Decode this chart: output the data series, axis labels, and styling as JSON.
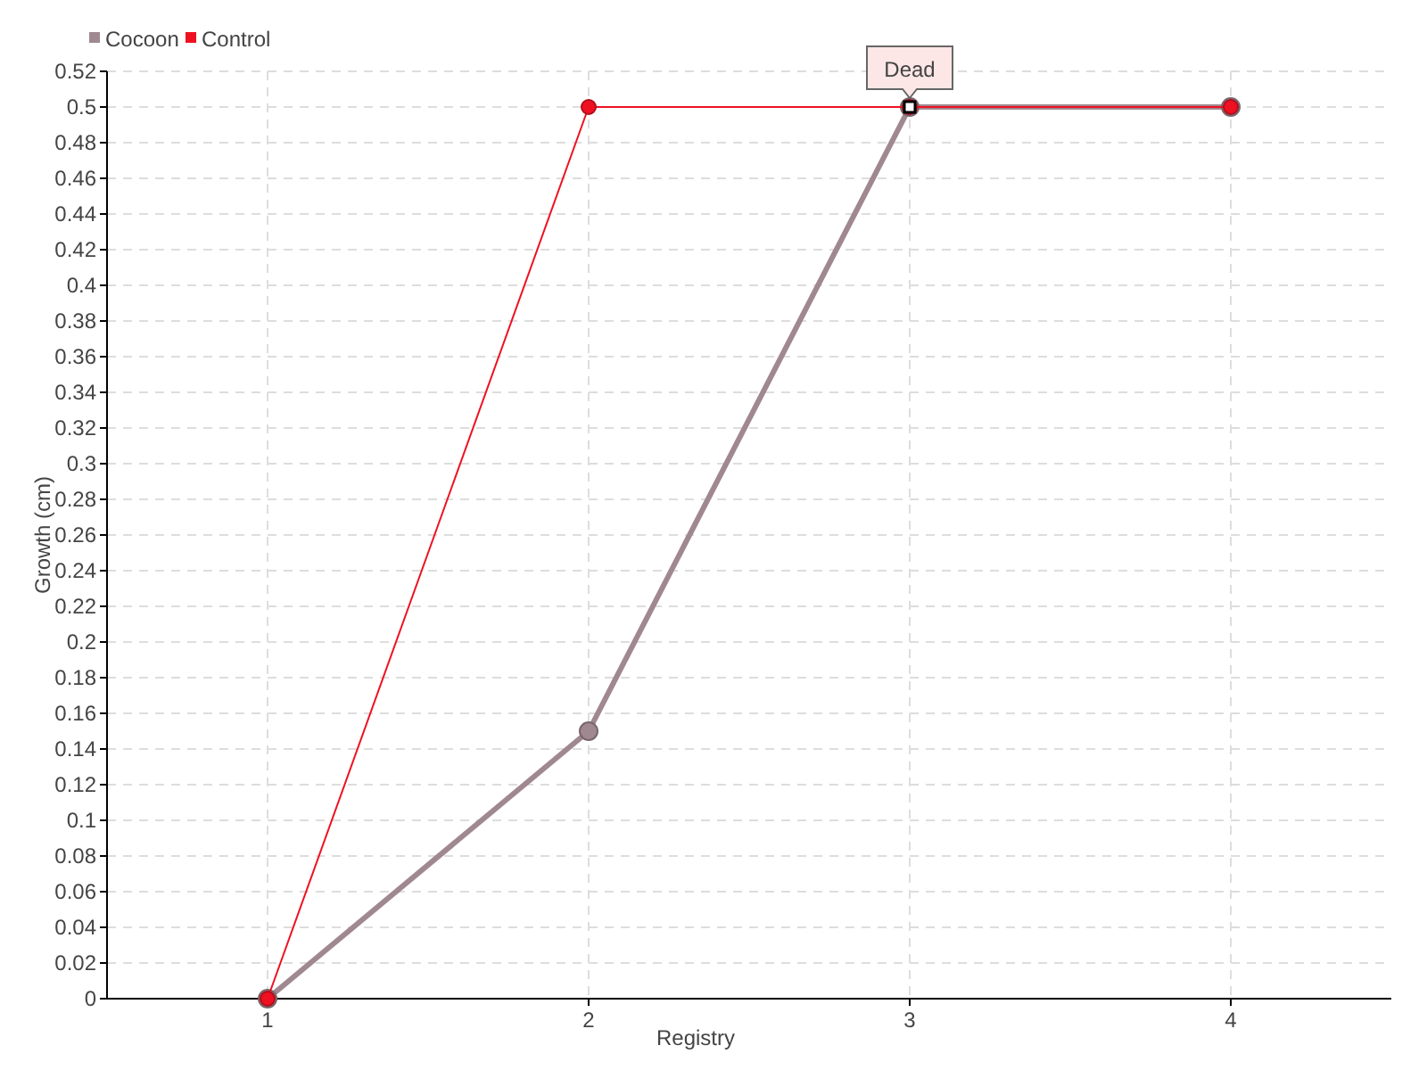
{
  "chart_data": {
    "type": "line",
    "xlabel": "Registry",
    "ylabel": "Growth (cm)",
    "x": [
      1,
      2,
      3,
      4
    ],
    "xlim": [
      0.5,
      4.5
    ],
    "xticks": [
      1,
      2,
      3,
      4
    ],
    "ylim": [
      0,
      0.52
    ],
    "yticks": [
      0,
      0.02,
      0.04,
      0.06,
      0.08,
      0.1,
      0.12,
      0.14,
      0.16,
      0.18,
      0.2,
      0.22,
      0.24,
      0.26,
      0.28,
      0.3,
      0.32,
      0.34,
      0.36,
      0.38,
      0.4,
      0.42,
      0.44,
      0.46,
      0.48,
      0.5,
      0.52
    ],
    "grid": true,
    "legend": "top left",
    "marker": "circle",
    "line_style": "solid",
    "series": [
      {
        "name": "Cocoon",
        "color": "#a08890",
        "values": [
          0,
          0.15,
          0.5,
          0.5
        ]
      },
      {
        "name": "Control",
        "color": "#ee1122",
        "values": [
          0,
          0.5,
          0.5,
          0.5
        ]
      }
    ],
    "annotations": [
      {
        "text": "Dead",
        "x": 3,
        "y": 0.5
      }
    ]
  }
}
